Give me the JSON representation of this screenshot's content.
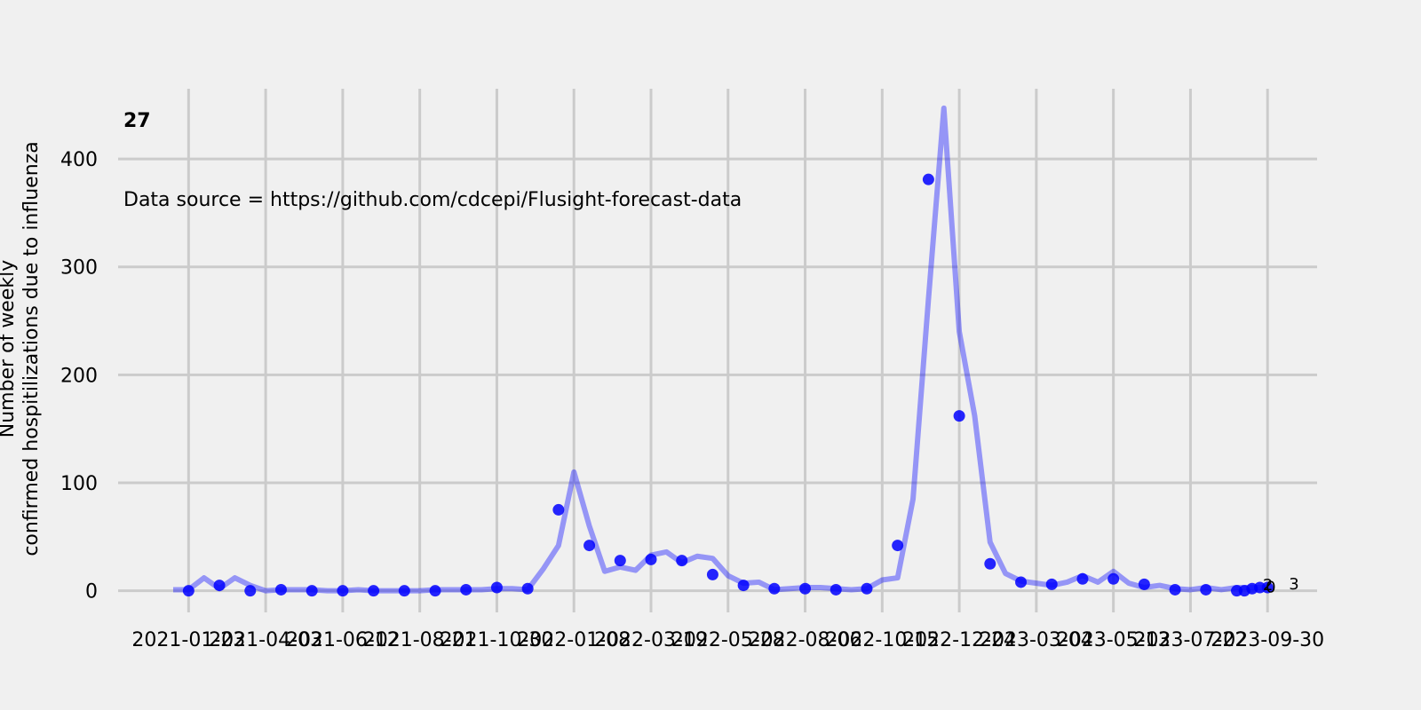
{
  "chart_data": {
    "type": "line",
    "title": "27",
    "annotation": "Data source = https://github.com/cdcepi/Flusight-forecast-data",
    "ylabel": [
      "Number of weekly",
      "confirmed hospitilizations due to influenza"
    ],
    "xlim": [
      "2020-11-20",
      "2023-11-14"
    ],
    "xticks": [
      "2021-01-23",
      "2021-04-03",
      "2021-06-12",
      "2021-08-21",
      "2021-10-30",
      "2022-01-08",
      "2022-03-19",
      "2022-05-28",
      "2022-08-06",
      "2022-10-15",
      "2022-12-24",
      "2023-03-04",
      "2023-05-13",
      "2023-07-22",
      "2023-09-30"
    ],
    "ylim": [
      -20,
      465
    ],
    "yticks": [
      0,
      100,
      200,
      300,
      400
    ],
    "grid": true,
    "series": [
      {
        "style": "line",
        "color": "#0000ff",
        "opacity": 0.38,
        "x": [
          "2021-01-09",
          "2021-01-23",
          "2021-02-06",
          "2021-02-20",
          "2021-03-06",
          "2021-03-20",
          "2021-04-03",
          "2021-04-17",
          "2021-05-01",
          "2021-05-15",
          "2021-05-29",
          "2021-06-12",
          "2021-06-26",
          "2021-07-10",
          "2021-07-24",
          "2021-08-07",
          "2021-08-21",
          "2021-09-04",
          "2021-09-18",
          "2021-10-02",
          "2021-10-16",
          "2021-10-30",
          "2021-11-13",
          "2021-11-27",
          "2021-12-11",
          "2021-12-25",
          "2022-01-08",
          "2022-01-22",
          "2022-02-05",
          "2022-02-19",
          "2022-03-05",
          "2022-03-19",
          "2022-04-02",
          "2022-04-16",
          "2022-04-30",
          "2022-05-14",
          "2022-05-28",
          "2022-06-11",
          "2022-06-25",
          "2022-07-09",
          "2022-07-23",
          "2022-08-06",
          "2022-08-20",
          "2022-09-03",
          "2022-09-17",
          "2022-10-01",
          "2022-10-15",
          "2022-10-29",
          "2022-11-12",
          "2022-11-26",
          "2022-12-10",
          "2022-12-24",
          "2023-01-07",
          "2023-01-21",
          "2023-02-04",
          "2023-02-18",
          "2023-03-04",
          "2023-03-18",
          "2023-04-01",
          "2023-04-15",
          "2023-04-29",
          "2023-05-13",
          "2023-05-27",
          "2023-06-10",
          "2023-06-24",
          "2023-07-08",
          "2023-07-22",
          "2023-08-05",
          "2023-08-19",
          "2023-09-02",
          "2023-09-16",
          "2023-09-30"
        ],
        "values": [
          1,
          1,
          12,
          2,
          12,
          5,
          0,
          1,
          1,
          1,
          0,
          0,
          1,
          0,
          0,
          0,
          0,
          1,
          1,
          1,
          1,
          2,
          2,
          1,
          20,
          42,
          110,
          60,
          18,
          22,
          19,
          33,
          36,
          26,
          32,
          30,
          14,
          7,
          8,
          1,
          2,
          3,
          3,
          2,
          1,
          2,
          10,
          12,
          85,
          270,
          447,
          240,
          162,
          45,
          16,
          9,
          7,
          5,
          8,
          14,
          8,
          18,
          7,
          3,
          5,
          2,
          1,
          3,
          1,
          3,
          3,
          3
        ]
      },
      {
        "style": "dots",
        "color": "#0000ff",
        "opacity": 0.85,
        "x": [
          "2021-01-23",
          "2021-02-20",
          "2021-03-20",
          "2021-04-17",
          "2021-05-15",
          "2021-06-12",
          "2021-07-10",
          "2021-08-07",
          "2021-09-04",
          "2021-10-02",
          "2021-10-30",
          "2021-11-27",
          "2021-12-25",
          "2022-01-22",
          "2022-02-19",
          "2022-03-19",
          "2022-04-16",
          "2022-05-14",
          "2022-06-11",
          "2022-07-09",
          "2022-08-06",
          "2022-09-03",
          "2022-10-01",
          "2022-10-29",
          "2022-11-26",
          "2022-12-24",
          "2023-01-21",
          "2023-02-18",
          "2023-03-18",
          "2023-04-15",
          "2023-05-13",
          "2023-06-10",
          "2023-07-08",
          "2023-08-05",
          "2023-09-02",
          "2023-09-09",
          "2023-09-16",
          "2023-09-23",
          "2023-09-30"
        ],
        "values": [
          0,
          5,
          0,
          1,
          0,
          0,
          0,
          0,
          0,
          1,
          3,
          2,
          75,
          42,
          28,
          29,
          28,
          15,
          5,
          2,
          2,
          1,
          2,
          42,
          381,
          162,
          25,
          8,
          6,
          11,
          11,
          6,
          1,
          1,
          0,
          0,
          2,
          3,
          3
        ],
        "value_labels": [
          null,
          null,
          null,
          null,
          null,
          null,
          null,
          null,
          null,
          null,
          null,
          null,
          null,
          null,
          null,
          null,
          null,
          null,
          null,
          null,
          null,
          null,
          null,
          null,
          null,
          null,
          null,
          null,
          null,
          null,
          null,
          null,
          null,
          null,
          null,
          "0",
          "2",
          null,
          "3"
        ]
      }
    ]
  }
}
